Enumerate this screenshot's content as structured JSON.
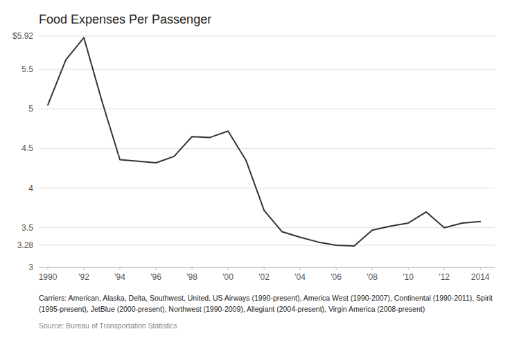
{
  "chart_data": {
    "type": "line",
    "title": "Food Expenses Per Passenger",
    "x": [
      1990,
      1991,
      1992,
      1993,
      1994,
      1995,
      1996,
      1997,
      1998,
      1999,
      2000,
      2001,
      2002,
      2003,
      2004,
      2005,
      2006,
      2007,
      2008,
      2009,
      2010,
      2011,
      2012,
      2013,
      2014
    ],
    "values": [
      5.05,
      5.62,
      5.9,
      5.1,
      4.36,
      4.34,
      4.32,
      4.4,
      4.65,
      4.64,
      4.72,
      4.35,
      3.72,
      3.45,
      3.38,
      3.32,
      3.28,
      3.27,
      3.47,
      3.52,
      3.56,
      3.7,
      3.5,
      3.56,
      3.58
    ],
    "color": "#333333",
    "xlim": [
      1989.5,
      2014.8
    ],
    "xticks": [
      1990,
      {
        "value": 1992,
        "label": "'92"
      },
      {
        "value": 1994,
        "label": "'94"
      },
      {
        "value": 1996,
        "label": "'96"
      },
      {
        "value": 1998,
        "label": "'98"
      },
      {
        "value": 2000,
        "label": "'00"
      },
      {
        "value": 2002,
        "label": "'02"
      },
      {
        "value": 2004,
        "label": "'04"
      },
      {
        "value": 2006,
        "label": "'06"
      },
      {
        "value": 2008,
        "label": "'08"
      },
      {
        "value": 2010,
        "label": "'10"
      },
      {
        "value": 2012,
        "label": "'12"
      },
      2014
    ],
    "ylim": [
      3,
      5.92
    ],
    "yticks": [
      {
        "value": 5.92,
        "label": "$5.92"
      },
      5.5,
      5,
      4.5,
      4,
      3.5,
      3.28,
      3
    ],
    "grid": true,
    "annotations": [
      "Carriers: American, Alaska, Delta, Southwest, United, US Airways (1990-present), America West (1990-2007), Continental (1990-2011), Spirit",
      "(1995-present), JetBlue (2000-present), Northwest (1990-2009), Allegiant (2004-present), Virgin America (2008-present)",
      "Source: Bureau of Transportation Statistics"
    ]
  }
}
